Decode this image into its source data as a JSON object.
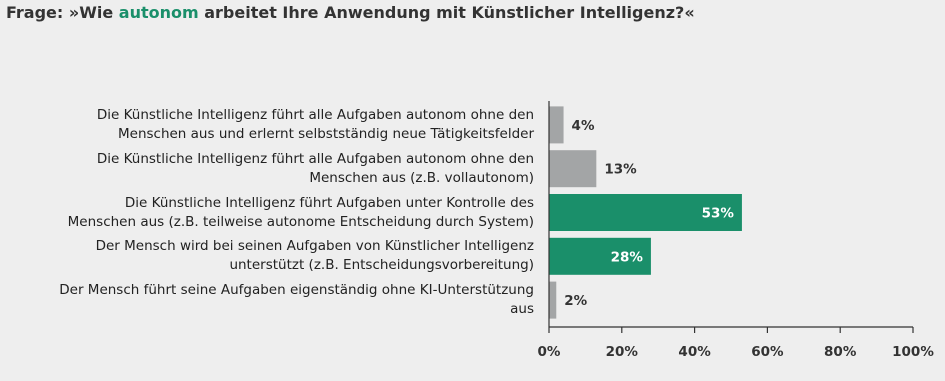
{
  "chart_data": {
    "type": "bar",
    "orientation": "horizontal",
    "title_parts": [
      {
        "text": "Frage: »Wie ",
        "color": "#333333"
      },
      {
        "text": "autonom",
        "color": "#1a8f6a"
      },
      {
        "text": " arbeitet Ihre Anwendung mit Künstlicher Intelligenz?«",
        "color": "#333333"
      }
    ],
    "categories": [
      "Die Künstliche Intelligenz führt alle Aufgaben autonom ohne den Menschen aus und erlernt selbstständig neue Tätigkeitsfelder",
      "Die Künstliche Intelligenz führt alle Aufgaben autonom ohne den Menschen aus (z.B. vollautonom)",
      "Die Künstliche Intelligenz führt Aufgaben unter Kontrolle des Menschen aus (z.B. teilweise autonome Entscheidung durch System)",
      "Der Mensch wird bei seinen Aufgaben von Künstlicher Intelligenz unterstützt (z.B. Entscheidungsvorbereitung)",
      "Der Mensch führt seine Aufgaben eigenständig ohne KI-Unterstützung aus"
    ],
    "values": [
      4,
      13,
      53,
      28,
      2
    ],
    "value_labels": [
      "4%",
      "13%",
      "53%",
      "28%",
      "2%"
    ],
    "colors": [
      "#a3a5a6",
      "#a3a5a6",
      "#1a8f6a",
      "#1a8f6a",
      "#a3a5a6"
    ],
    "xlim": [
      0,
      100
    ],
    "xticks": [
      {
        "value": 0,
        "label": "0%"
      },
      {
        "value": 20,
        "label": "20%"
      },
      {
        "value": 40,
        "label": "40%"
      },
      {
        "value": 60,
        "label": "60%"
      },
      {
        "value": 80,
        "label": "80%"
      },
      {
        "value": 100,
        "label": "100%"
      }
    ]
  }
}
